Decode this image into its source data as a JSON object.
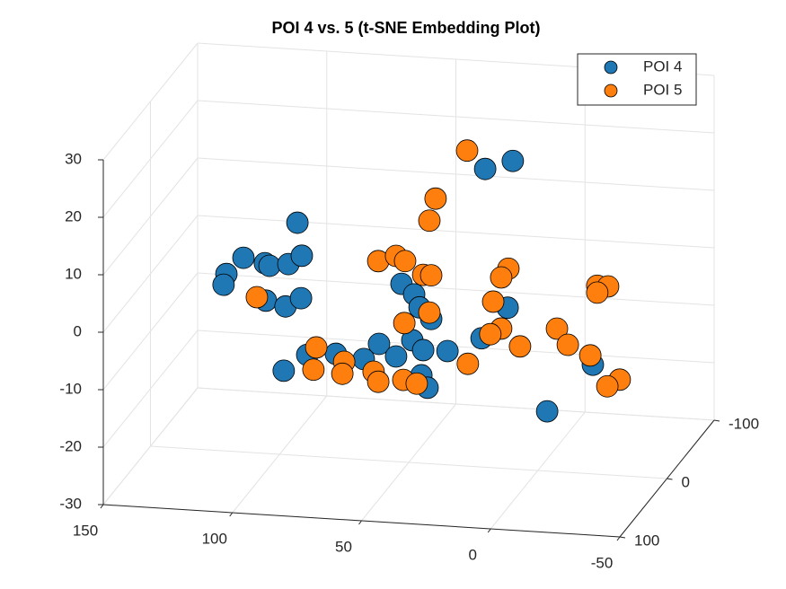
{
  "chart_data": {
    "type": "scatter3d",
    "title": "POI 4 vs. 5 (t-SNE Embedding Plot)",
    "xlim": [
      -50,
      150
    ],
    "ylim": [
      -100,
      100
    ],
    "zlim": [
      -30,
      30
    ],
    "xticks": [
      -50,
      0,
      50,
      100,
      150
    ],
    "yticks": [
      -100,
      0,
      100
    ],
    "zticks": [
      -30,
      -20,
      -10,
      0,
      10,
      20,
      30
    ],
    "grid": true,
    "legend": "top-right",
    "series": [
      {
        "name": "POI 4",
        "color": "#1f77b4",
        "x": [
          20.4,
          9.7,
          93.1,
          114.0,
          120.6,
          121.7,
          105.7,
          103.9,
          96.6,
          91.4,
          105.3,
          97.7,
          91.7,
          52.8,
          47.9,
          45.8,
          41.3,
          11.7,
          21.8,
          48.6,
          44.4,
          35.0,
          61.5,
          54.9,
          78.2,
          67.4,
          89.3,
          98.4,
          45.1,
          42.7,
          -3.6,
          -21.3
        ],
        "y": [
          0,
          0,
          0,
          0,
          0,
          0,
          0,
          0,
          0,
          0,
          0,
          0,
          0,
          0,
          0,
          0,
          0,
          0,
          0,
          0,
          0,
          0,
          0,
          0,
          0,
          0,
          0,
          0,
          0,
          0,
          0,
          0
        ],
        "z": [
          21.9,
          23.6,
          10.5,
          3.8,
          0.8,
          -1.1,
          3.1,
          2.7,
          3.2,
          4.8,
          -3.4,
          -4.2,
          -2.6,
          1.0,
          -0.7,
          -2.9,
          -4.8,
          -2.0,
          -7.6,
          -8.7,
          -10.3,
          -10.2,
          -9.7,
          -11.7,
          -11.9,
          -12.5,
          -12.4,
          -15.4,
          -14.7,
          -16.8,
          -19.6,
          -11.0
        ]
      },
      {
        "name": "POI 5",
        "color": "#ff7f0e",
        "x": [
          27.4,
          39.6,
          42.0,
          61.8,
          54.9,
          51.4,
          44.4,
          41.3,
          11.4,
          14.2,
          17.3,
          42.0,
          51.7,
          14.2,
          18.4,
          6.9,
          -7.4,
          -11.6,
          -20.3,
          -23.0,
          -27.2,
          -23.0,
          -31.7,
          -26.9,
          108.8,
          85.8,
          86.9,
          75.0,
          75.7,
          63.6,
          61.8,
          52.1,
          46.9,
          27.1
        ],
        "y": [
          0,
          0,
          0,
          0,
          0,
          0,
          0,
          0,
          0,
          0,
          0,
          0,
          0,
          0,
          0,
          0,
          0,
          0,
          0,
          0,
          0,
          0,
          0,
          0,
          0,
          0,
          0,
          0,
          0,
          0,
          0,
          0,
          0,
          0
        ],
        "z": [
          24.9,
          16.2,
          12.3,
          4.7,
          5.8,
          5.0,
          2.8,
          2.8,
          4.8,
          3.2,
          -1.1,
          -3.7,
          -5.8,
          -5.7,
          -6.8,
          -8.6,
          -5.1,
          -7.8,
          -9.4,
          2.8,
          2.8,
          1.6,
          -13.3,
          -14.6,
          -2.9,
          -11.0,
          -14.9,
          -13.2,
          -15.3,
          -14.6,
          -16.3,
          -15.7,
          -16.2,
          -12.2
        ]
      }
    ]
  }
}
